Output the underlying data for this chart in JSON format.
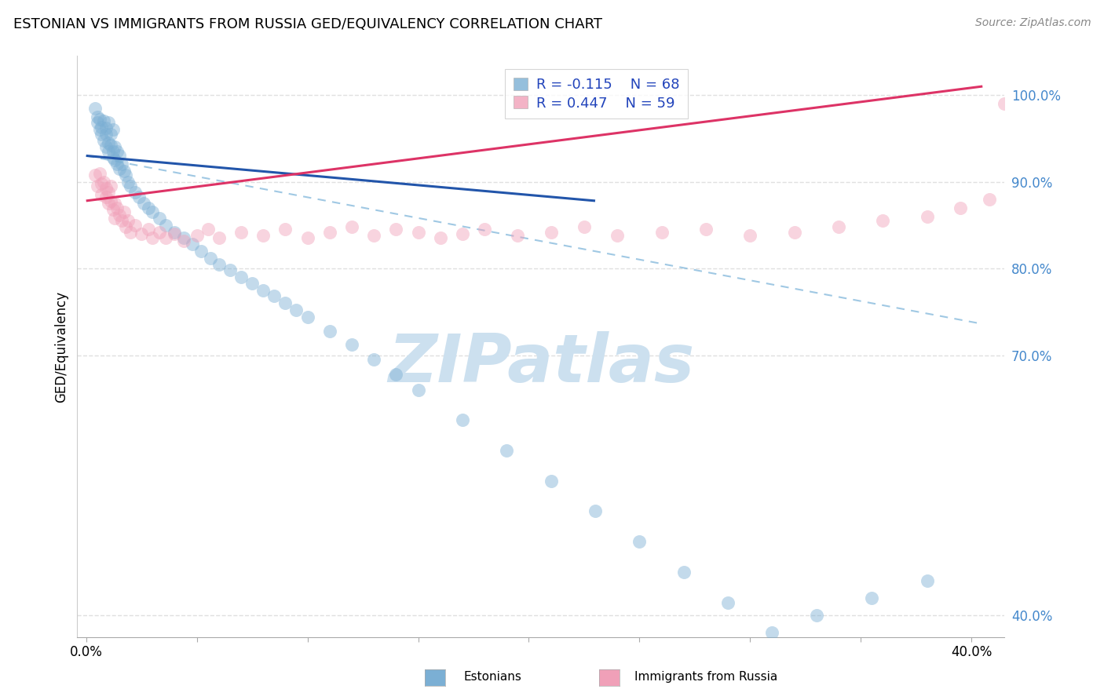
{
  "title": "ESTONIAN VS IMMIGRANTS FROM RUSSIA GED/EQUIVALENCY CORRELATION CHART",
  "source": "Source: ZipAtlas.com",
  "ylabel": "GED/Equivalency",
  "y_ticks_right": [
    "100.0%",
    "90.0%",
    "80.0%",
    "70.0%",
    "40.0%"
  ],
  "y_tick_vals": [
    1.0,
    0.9,
    0.8,
    0.7,
    0.4
  ],
  "x_tick_positions": [
    0.0,
    0.05,
    0.1,
    0.15,
    0.2,
    0.25,
    0.3,
    0.35,
    0.4
  ],
  "x_tick_labels": [
    "0.0%",
    "",
    "",
    "",
    "",
    "",
    "",
    "",
    "40.0%"
  ],
  "xlim": [
    -0.004,
    0.415
  ],
  "ylim": [
    0.375,
    1.045
  ],
  "estonians_color": "#7bafd4",
  "russia_color": "#f0a0b8",
  "watermark": "ZIPatlas",
  "watermark_color": "#cce0ef",
  "grid_color": "#e0e0e0",
  "title_fontsize": 13,
  "scatter_alpha": 0.45,
  "scatter_size": 150,
  "blue_solid_line": [
    [
      0.0,
      0.93
    ],
    [
      0.23,
      0.878
    ]
  ],
  "blue_dash_line": [
    [
      0.0,
      0.93
    ],
    [
      0.405,
      0.736
    ]
  ],
  "pink_solid_line": [
    [
      0.0,
      0.878
    ],
    [
      0.405,
      1.01
    ]
  ],
  "estonians_x": [
    0.004,
    0.005,
    0.005,
    0.006,
    0.006,
    0.007,
    0.007,
    0.008,
    0.008,
    0.009,
    0.009,
    0.009,
    0.01,
    0.01,
    0.01,
    0.011,
    0.011,
    0.012,
    0.012,
    0.012,
    0.013,
    0.013,
    0.014,
    0.014,
    0.015,
    0.015,
    0.016,
    0.017,
    0.018,
    0.019,
    0.02,
    0.022,
    0.024,
    0.026,
    0.028,
    0.03,
    0.033,
    0.036,
    0.04,
    0.044,
    0.048,
    0.052,
    0.056,
    0.06,
    0.065,
    0.07,
    0.075,
    0.08,
    0.085,
    0.09,
    0.095,
    0.1,
    0.11,
    0.12,
    0.13,
    0.14,
    0.15,
    0.17,
    0.19,
    0.21,
    0.23,
    0.25,
    0.27,
    0.29,
    0.31,
    0.33,
    0.355,
    0.38
  ],
  "estonians_y": [
    0.985,
    0.975,
    0.968,
    0.96,
    0.972,
    0.963,
    0.955,
    0.97,
    0.948,
    0.962,
    0.94,
    0.955,
    0.968,
    0.945,
    0.935,
    0.955,
    0.942,
    0.96,
    0.935,
    0.928,
    0.94,
    0.925,
    0.935,
    0.92,
    0.93,
    0.915,
    0.92,
    0.912,
    0.908,
    0.9,
    0.895,
    0.888,
    0.882,
    0.875,
    0.87,
    0.865,
    0.858,
    0.85,
    0.842,
    0.835,
    0.828,
    0.82,
    0.812,
    0.805,
    0.798,
    0.79,
    0.783,
    0.775,
    0.768,
    0.76,
    0.752,
    0.744,
    0.728,
    0.712,
    0.695,
    0.678,
    0.66,
    0.625,
    0.59,
    0.555,
    0.52,
    0.485,
    0.45,
    0.415,
    0.38,
    0.4,
    0.42,
    0.44
  ],
  "russia_x": [
    0.004,
    0.005,
    0.006,
    0.007,
    0.007,
    0.008,
    0.009,
    0.009,
    0.01,
    0.01,
    0.011,
    0.011,
    0.012,
    0.013,
    0.013,
    0.014,
    0.015,
    0.016,
    0.017,
    0.018,
    0.019,
    0.02,
    0.022,
    0.025,
    0.028,
    0.03,
    0.033,
    0.036,
    0.04,
    0.044,
    0.05,
    0.055,
    0.06,
    0.07,
    0.08,
    0.09,
    0.1,
    0.11,
    0.12,
    0.13,
    0.14,
    0.15,
    0.16,
    0.17,
    0.18,
    0.195,
    0.21,
    0.225,
    0.24,
    0.26,
    0.28,
    0.3,
    0.32,
    0.34,
    0.36,
    0.38,
    0.395,
    0.408,
    0.415
  ],
  "russia_y": [
    0.908,
    0.895,
    0.91,
    0.885,
    0.898,
    0.9,
    0.882,
    0.892,
    0.888,
    0.875,
    0.895,
    0.878,
    0.868,
    0.875,
    0.858,
    0.87,
    0.862,
    0.855,
    0.865,
    0.848,
    0.855,
    0.842,
    0.85,
    0.84,
    0.845,
    0.835,
    0.842,
    0.835,
    0.84,
    0.832,
    0.838,
    0.845,
    0.835,
    0.842,
    0.838,
    0.845,
    0.835,
    0.842,
    0.848,
    0.838,
    0.845,
    0.842,
    0.835,
    0.84,
    0.845,
    0.838,
    0.842,
    0.848,
    0.838,
    0.842,
    0.845,
    0.838,
    0.842,
    0.848,
    0.855,
    0.86,
    0.87,
    0.88,
    0.99
  ]
}
